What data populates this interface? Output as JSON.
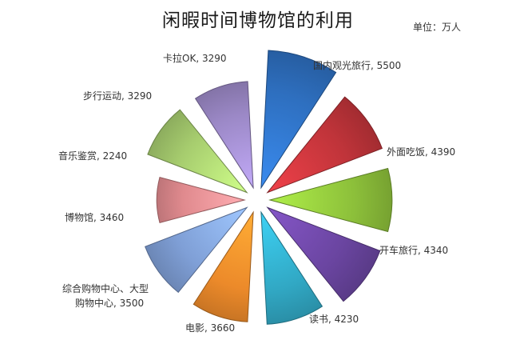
{
  "title": "闲暇时间博物馆的利用",
  "unit": "单位：万人",
  "chart_data": {
    "type": "pie",
    "subtype": "polar-area (equal angles, radius by value, exploded)",
    "title": "闲暇时间博物馆的利用",
    "unit": "万人",
    "categories": [
      "国内观光旅行",
      "外面吃饭",
      "开车旅行",
      "读书",
      "电影",
      "综合购物中心、大型购物中心",
      "博物馆",
      "音乐鉴赏",
      "步行运动",
      "卡拉OK"
    ],
    "values": [
      5500,
      4390,
      4340,
      4230,
      3660,
      3500,
      3460,
      2240,
      3290,
      3290
    ],
    "colors": [
      "#2e6fbf",
      "#c0343a",
      "#8cbf3a",
      "#6a45a0",
      "#31a8c4",
      "#ec8a2a",
      "#7f9fd6",
      "#e08a8e",
      "#a6cc6e",
      "#9b88c6"
    ],
    "labels": [
      "国内观光旅行, 5500",
      "外面吃饭, 4390",
      "开车旅行, 4340",
      "读书, 4230",
      "电影, 3660",
      "综合购物中心、大型",
      "购物中心, 3500",
      "博物馆, 3460",
      "音乐鉴赏, 2240",
      "步行运动, 3290",
      "卡拉OK, 3290"
    ],
    "legend": "none (data labels)"
  }
}
